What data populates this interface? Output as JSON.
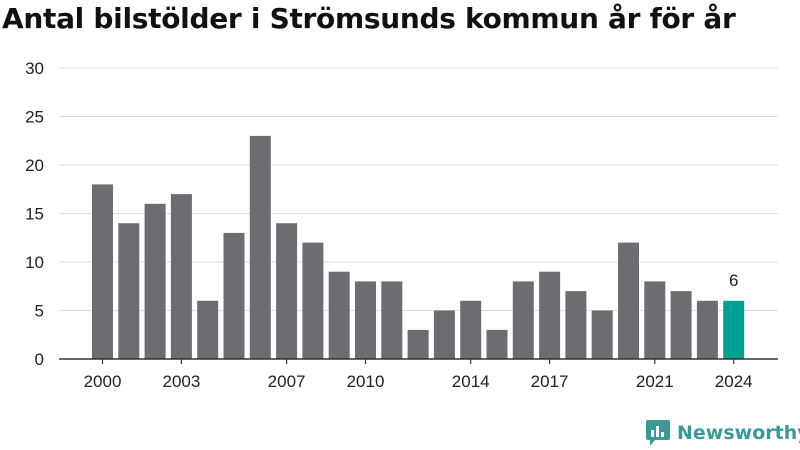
{
  "title": "Antal bilstölder i Strömsunds kommun år för år",
  "brand": {
    "name": "Newsworthy",
    "icon": "chart-bubble-icon",
    "color": "#3b9a98"
  },
  "colors": {
    "bar": "#6d6c71",
    "highlight": "#00a193",
    "grid": "#dddddd",
    "axis": "#333333"
  },
  "chart_data": {
    "type": "bar",
    "categories": [
      "2000",
      "2001",
      "2002",
      "2003",
      "2004",
      "2005",
      "2006",
      "2007",
      "2008",
      "2009",
      "2010",
      "2011",
      "2012",
      "2013",
      "2014",
      "2015",
      "2016",
      "2017",
      "2018",
      "2019",
      "2020",
      "2021",
      "2022",
      "2023",
      "2024"
    ],
    "values": [
      18,
      14,
      16,
      17,
      6,
      13,
      23,
      14,
      12,
      9,
      8,
      8,
      3,
      5,
      6,
      3,
      8,
      9,
      7,
      5,
      12,
      8,
      7,
      6,
      6
    ],
    "ylim": [
      0,
      30
    ],
    "yticks": [
      "0",
      "5",
      "10",
      "15",
      "20",
      "25",
      "30"
    ],
    "xtick_labels": [
      "2000",
      "2003",
      "2007",
      "2010",
      "2014",
      "2017",
      "2021",
      "2024"
    ],
    "highlight_category": "2024",
    "highlight_label": "6",
    "grid": true,
    "title": "Antal bilstölder i Strömsunds kommun år för år",
    "xlabel": "",
    "ylabel": ""
  }
}
